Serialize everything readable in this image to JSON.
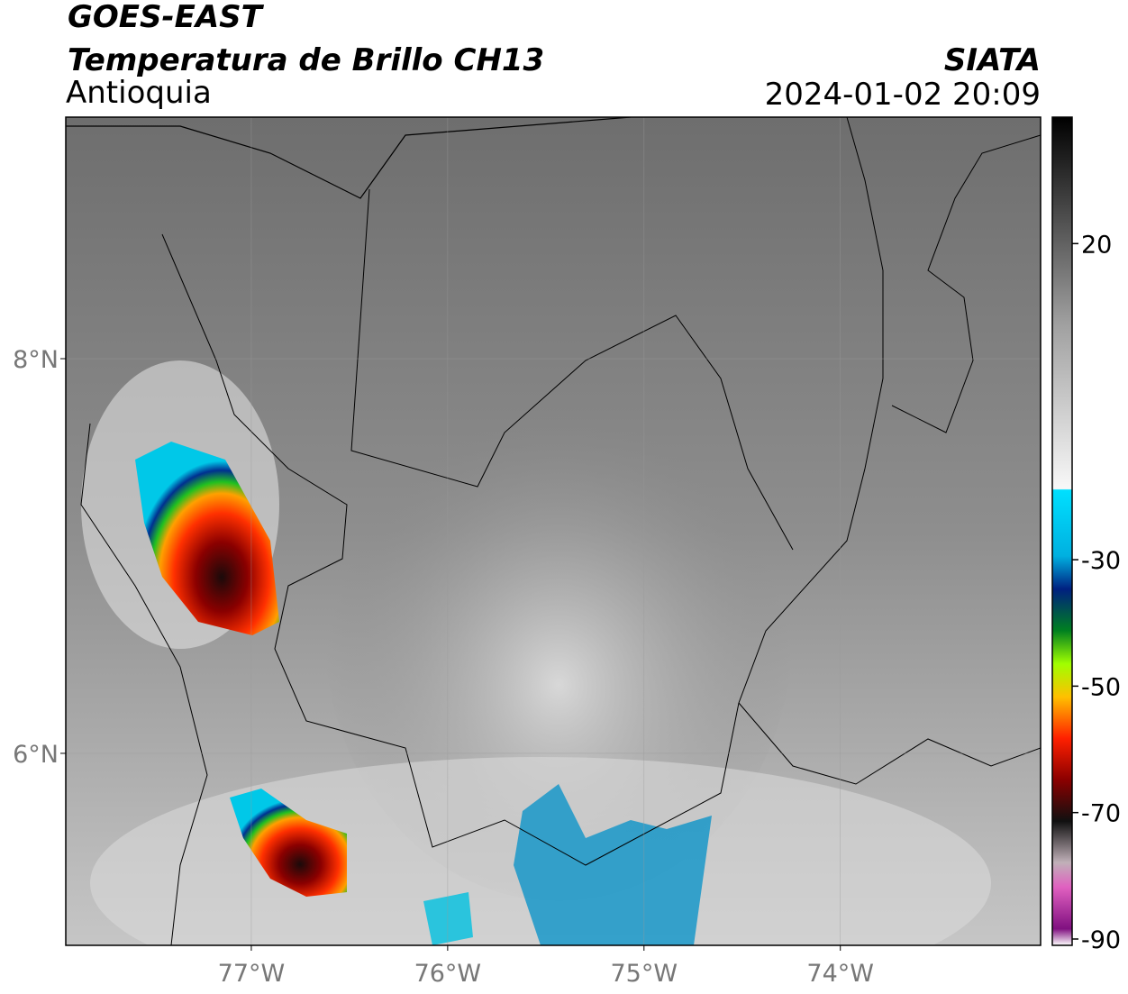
{
  "title": "GOES-EAST",
  "subtitle": "Temperatura de Brillo CH13",
  "region": "Antioquia",
  "source": "SIATA",
  "datetime": "2024-01-02 20:09",
  "map": {
    "xlim": [
      -77.945,
      -72.98
    ],
    "ylim": [
      5.027,
      9.224
    ],
    "lon_ticks": [
      {
        "value": -77,
        "label": "77°W"
      },
      {
        "value": -76,
        "label": "76°W"
      },
      {
        "value": -75,
        "label": "75°W"
      },
      {
        "value": -74,
        "label": "74°W"
      }
    ],
    "lat_ticks": [
      {
        "value": 8,
        "label": "8°N"
      },
      {
        "value": 6,
        "label": "6°N"
      }
    ],
    "grid": true
  },
  "colorbar": {
    "lim": [
      -91,
      40
    ],
    "ticks": [
      20,
      -30,
      -50,
      -70,
      -90
    ]
  }
}
